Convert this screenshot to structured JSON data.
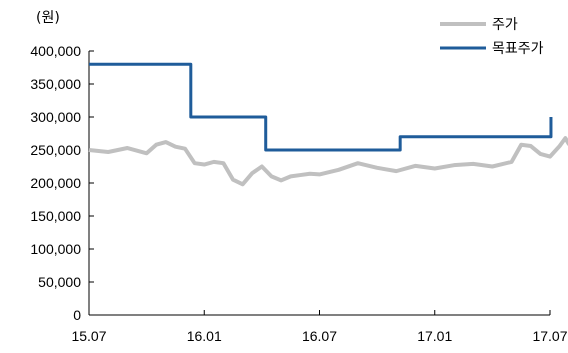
{
  "chart_data": {
    "type": "line",
    "title": "",
    "unit_label": "(원)",
    "xlabel": "",
    "ylabel": "",
    "x_ticks": [
      "15.07",
      "16.01",
      "16.07",
      "17.01",
      "17.07"
    ],
    "ylim": [
      0,
      400000
    ],
    "y_ticks": [
      "400,000",
      "350,000",
      "300,000",
      "250,000",
      "200,000",
      "150,000",
      "100,000",
      "50,000",
      "0"
    ],
    "grid": false,
    "legend_position": "top-right",
    "series": [
      {
        "name": "주가",
        "color": "#c0c0c0",
        "x": [
          0,
          1,
          2,
          3,
          3.5,
          4,
          4.5,
          5,
          5.5,
          6,
          6.5,
          7,
          7.5,
          8,
          8.5,
          9,
          9.5,
          10,
          10.5,
          11,
          11.5,
          12,
          13,
          14,
          15,
          16,
          17,
          18,
          19,
          20,
          21,
          22,
          22.5,
          23,
          23.5,
          24,
          24.5,
          24.8,
          25
        ],
        "values": [
          250000,
          247000,
          253000,
          245000,
          258000,
          262000,
          255000,
          252000,
          230000,
          228000,
          232000,
          230000,
          205000,
          198000,
          215000,
          225000,
          210000,
          204000,
          210000,
          212000,
          214000,
          213000,
          220000,
          230000,
          223000,
          218000,
          226000,
          222000,
          227000,
          229000,
          225000,
          232000,
          258000,
          256000,
          244000,
          240000,
          256000,
          268000,
          258000
        ]
      },
      {
        "name": "목표주가",
        "color": "#1f5c9a",
        "step": true,
        "x": [
          0,
          5.3,
          9.2,
          16.2,
          24.7,
          25.5
        ],
        "values": [
          380000,
          300000,
          250000,
          270000,
          300000,
          300000
        ]
      }
    ]
  }
}
